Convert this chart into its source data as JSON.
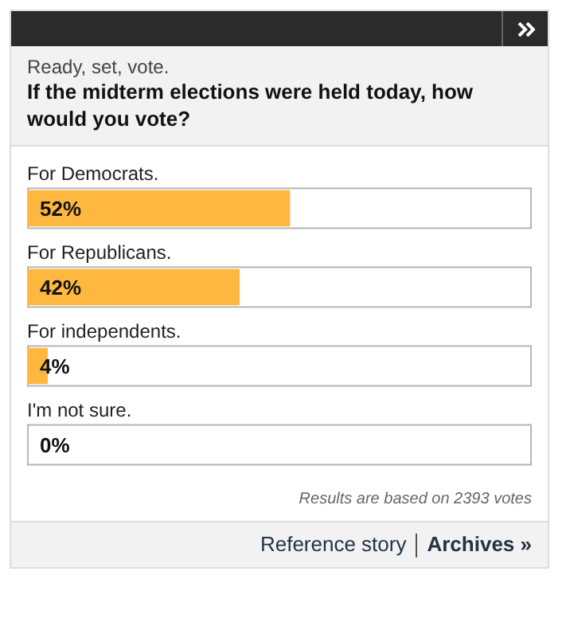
{
  "chart_data": {
    "type": "bar",
    "orientation": "horizontal",
    "subtitle": "Ready, set, vote.",
    "title": "If the midterm elections were held today, how would you vote?",
    "categories": [
      "For Democrats.",
      "For Republicans.",
      "For independents.",
      "I'm not sure."
    ],
    "values": [
      52,
      42,
      4,
      0
    ],
    "value_labels": [
      "52%",
      "42%",
      "4%",
      "0%"
    ],
    "color": "#ffb83f",
    "xlim": [
      0,
      100
    ],
    "tick_labels": false,
    "legend": false,
    "annotations": [
      "Results are based on 2393 votes",
      "Reference story",
      "Archives »"
    ]
  }
}
